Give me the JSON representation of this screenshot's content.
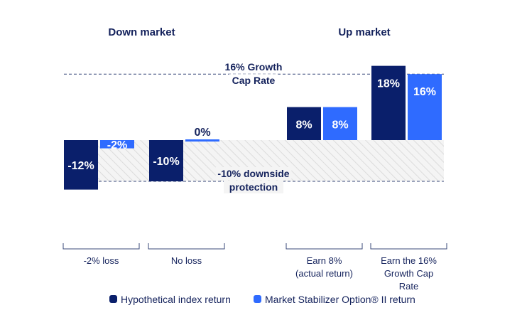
{
  "chart_data": {
    "type": "bar",
    "groups": [
      {
        "label": "Down market",
        "categories": [
          0,
          1
        ]
      },
      {
        "label": "Up market",
        "categories": [
          2,
          3
        ]
      }
    ],
    "categories": [
      [
        "-2% loss"
      ],
      [
        "No loss"
      ],
      [
        "Earn 8%",
        "(actual return)"
      ],
      [
        "Earn the 16%",
        "Growth Cap",
        "Rate"
      ]
    ],
    "series": [
      {
        "name": "Hypothetical index return",
        "values": [
          -12,
          -10,
          8,
          18
        ],
        "labels": [
          "-12%",
          "-10%",
          "8%",
          "18%"
        ],
        "color": "#0a1f6b"
      },
      {
        "name": "Market Stabilizer Option® II return",
        "values": [
          -2,
          0,
          8,
          16
        ],
        "labels": [
          "-2%",
          "0%",
          "8%",
          "16%"
        ],
        "color": "#2f6bff"
      }
    ],
    "reference_lines": [
      {
        "value": 16,
        "label": [
          "16% Growth",
          "Cap Rate"
        ]
      },
      {
        "value": -10,
        "label": [
          "-10% downside",
          "protection"
        ]
      }
    ],
    "ylim": [
      -12,
      18
    ],
    "shaded_band": [
      -10,
      0
    ],
    "legend_position": "bottom"
  }
}
